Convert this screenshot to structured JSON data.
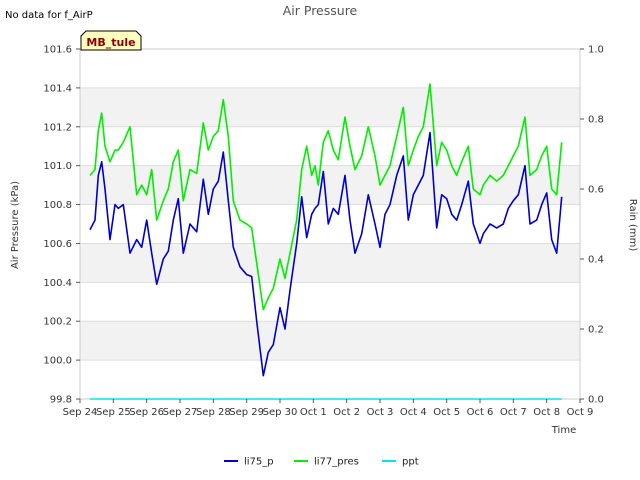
{
  "chart_data": {
    "type": "line",
    "title": "Air Pressure",
    "note": "No data for f_AirP",
    "station_badge": "MB_tule",
    "xlabel": "Time",
    "ylabel": "Air Pressure (kPa)",
    "y2label": "Rain (mm)",
    "x_ticks": [
      "Sep 24",
      "Sep 25",
      "Sep 26",
      "Sep 27",
      "Sep 28",
      "Sep 29",
      "Sep 30",
      "Oct 1",
      "Oct 2",
      "Oct 3",
      "Oct 4",
      "Oct 5",
      "Oct 6",
      "Oct 7",
      "Oct 8",
      "Oct 9"
    ],
    "xlim": [
      0,
      15
    ],
    "ylim": [
      99.8,
      101.6
    ],
    "y_ticks": [
      "99.8",
      "100.0",
      "100.2",
      "100.4",
      "100.6",
      "100.8",
      "101.0",
      "101.2",
      "101.4",
      "101.6"
    ],
    "y2lim": [
      0.0,
      1.0
    ],
    "y2_ticks": [
      "0.0",
      "0.2",
      "0.4",
      "0.6",
      "0.8",
      "1.0"
    ],
    "series": [
      {
        "name": "li75_p",
        "color": "#0000cc",
        "axis": "left",
        "x": [
          0.3,
          0.45,
          0.55,
          0.65,
          0.75,
          0.9,
          1.05,
          1.15,
          1.3,
          1.5,
          1.7,
          1.85,
          2.0,
          2.15,
          2.3,
          2.5,
          2.65,
          2.8,
          2.95,
          3.1,
          3.3,
          3.5,
          3.7,
          3.85,
          4.0,
          4.15,
          4.3,
          4.45,
          4.6,
          4.8,
          5.0,
          5.15,
          5.3,
          5.5,
          5.65,
          5.8,
          6.0,
          6.15,
          6.3,
          6.5,
          6.65,
          6.8,
          6.95,
          7.05,
          7.15,
          7.3,
          7.45,
          7.6,
          7.75,
          7.95,
          8.1,
          8.25,
          8.45,
          8.65,
          8.85,
          9.0,
          9.15,
          9.3,
          9.5,
          9.7,
          9.85,
          10.0,
          10.15,
          10.3,
          10.5,
          10.7,
          10.85,
          11.0,
          11.15,
          11.3,
          11.45,
          11.65,
          11.8,
          12.0,
          12.1,
          12.3,
          12.5,
          12.7,
          12.85,
          13.0,
          13.15,
          13.35,
          13.5,
          13.7,
          13.85,
          14.0,
          14.15,
          14.3,
          14.45
        ],
        "values": [
          100.67,
          100.72,
          100.95,
          101.02,
          100.88,
          100.62,
          100.8,
          100.78,
          100.8,
          100.55,
          100.62,
          100.58,
          100.72,
          100.55,
          100.39,
          100.52,
          100.56,
          100.72,
          100.83,
          100.55,
          100.7,
          100.66,
          100.93,
          100.75,
          100.88,
          100.92,
          101.07,
          100.82,
          100.58,
          100.48,
          100.44,
          100.43,
          100.2,
          99.92,
          100.04,
          100.08,
          100.27,
          100.16,
          100.36,
          100.6,
          100.84,
          100.63,
          100.75,
          100.78,
          100.8,
          100.97,
          100.7,
          100.78,
          100.75,
          100.95,
          100.72,
          100.55,
          100.65,
          100.85,
          100.7,
          100.58,
          100.75,
          100.8,
          100.95,
          101.05,
          100.72,
          100.85,
          100.9,
          100.95,
          101.17,
          100.68,
          100.85,
          100.83,
          100.75,
          100.72,
          100.8,
          100.92,
          100.7,
          100.6,
          100.65,
          100.7,
          100.68,
          100.7,
          100.78,
          100.82,
          100.85,
          101.0,
          100.7,
          100.72,
          100.8,
          100.86,
          100.62,
          100.55,
          100.84
        ]
      },
      {
        "name": "li77_pres",
        "color": "#00ee00",
        "axis": "left",
        "x": [
          0.3,
          0.45,
          0.55,
          0.65,
          0.75,
          0.9,
          1.05,
          1.15,
          1.3,
          1.5,
          1.7,
          1.85,
          2.0,
          2.15,
          2.3,
          2.5,
          2.65,
          2.8,
          2.95,
          3.1,
          3.3,
          3.5,
          3.7,
          3.85,
          4.0,
          4.15,
          4.3,
          4.45,
          4.6,
          4.8,
          5.0,
          5.15,
          5.3,
          5.5,
          5.65,
          5.8,
          6.0,
          6.15,
          6.3,
          6.5,
          6.65,
          6.8,
          6.95,
          7.05,
          7.15,
          7.3,
          7.45,
          7.6,
          7.75,
          7.95,
          8.1,
          8.25,
          8.45,
          8.65,
          8.85,
          9.0,
          9.15,
          9.3,
          9.5,
          9.7,
          9.85,
          10.0,
          10.15,
          10.3,
          10.5,
          10.7,
          10.85,
          11.0,
          11.15,
          11.3,
          11.45,
          11.65,
          11.8,
          12.0,
          12.1,
          12.3,
          12.5,
          12.7,
          12.85,
          13.0,
          13.15,
          13.35,
          13.5,
          13.7,
          13.85,
          14.0,
          14.15,
          14.3,
          14.45
        ],
        "values": [
          100.95,
          100.98,
          101.18,
          101.27,
          101.1,
          101.02,
          101.08,
          101.08,
          101.12,
          101.2,
          100.85,
          100.9,
          100.85,
          100.98,
          100.72,
          100.82,
          100.88,
          101.02,
          101.08,
          100.82,
          100.98,
          100.96,
          101.22,
          101.08,
          101.15,
          101.18,
          101.34,
          101.15,
          100.82,
          100.72,
          100.7,
          100.68,
          100.5,
          100.26,
          100.32,
          100.37,
          100.52,
          100.42,
          100.55,
          100.72,
          100.98,
          101.1,
          100.95,
          101.0,
          100.9,
          101.12,
          101.18,
          101.08,
          101.03,
          101.25,
          101.1,
          100.98,
          101.05,
          101.2,
          101.05,
          100.9,
          100.95,
          101.0,
          101.15,
          101.3,
          101.0,
          101.08,
          101.15,
          101.2,
          101.42,
          101.0,
          101.12,
          101.08,
          101.0,
          100.95,
          101.02,
          101.1,
          100.88,
          100.85,
          100.9,
          100.95,
          100.92,
          100.95,
          101.0,
          101.05,
          101.1,
          101.25,
          100.95,
          100.98,
          101.05,
          101.1,
          100.88,
          100.85,
          101.12
        ]
      },
      {
        "name": "ppt",
        "color": "#00e5ee",
        "axis": "right",
        "x": [
          0.3,
          14.45
        ],
        "values": [
          0.0,
          0.0
        ]
      }
    ],
    "legend": [
      "li75_p",
      "li77_pres",
      "ppt"
    ],
    "legend_position": "bottom-center",
    "grid": true
  }
}
